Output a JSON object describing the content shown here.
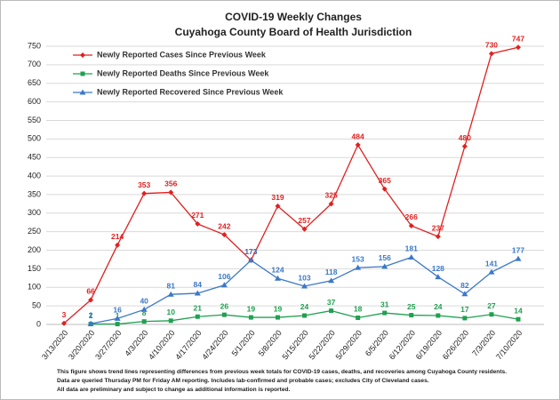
{
  "chart_data": {
    "type": "line",
    "title": "COVID-19 Weekly Changes",
    "subtitle": "Cuyahoga County Board of Health Jurisdiction",
    "categories": [
      "3/13/2020",
      "3/20/2020",
      "3/27/2020",
      "4/3/2020",
      "4/10/2020",
      "4/17/2020",
      "4/24/2020",
      "5/1/2020",
      "5/8/2020",
      "5/15/2020",
      "5/22/2020",
      "5/29/2020",
      "6/5/2020",
      "6/12/2020",
      "6/19/2020",
      "6/26/2020",
      "7/3/2020",
      "7/10/2020"
    ],
    "series": [
      {
        "name": "Newly Reported Cases Since Previous Week",
        "color": "#e02020",
        "marker": "diamond",
        "values": [
          3,
          66,
          214,
          353,
          356,
          271,
          242,
          173,
          319,
          257,
          325,
          484,
          365,
          266,
          237,
          480,
          730,
          747
        ]
      },
      {
        "name": "Newly Reported Deaths Since Previous Week",
        "color": "#20a050",
        "marker": "square",
        "values": [
          null,
          1,
          1,
          8,
          10,
          21,
          26,
          19,
          19,
          24,
          37,
          18,
          31,
          25,
          24,
          17,
          27,
          14
        ]
      },
      {
        "name": "Newly Reported Recovered Since Previous Week",
        "color": "#3a78c8",
        "marker": "triangle",
        "values": [
          null,
          2,
          16,
          40,
          81,
          84,
          106,
          173,
          124,
          103,
          118,
          153,
          156,
          181,
          128,
          82,
          141,
          177
        ]
      }
    ],
    "ylim": [
      0,
      750
    ],
    "yticks": [
      0,
      50,
      100,
      150,
      200,
      250,
      300,
      350,
      400,
      450,
      500,
      550,
      600,
      650,
      700,
      750
    ],
    "grid": true,
    "legend": "upper-left",
    "notes": [
      "This figure shows trend lines representing differences from previous week totals for COVID-19 cases, deaths, and recoveries among Cuyahoga County residents.",
      "Data are queried Thursday PM for Friday AM reporting. Includes lab-confirmed and probable cases; excludes City of Cleveland cases.",
      "All data are preliminary and subject to change as additional information is reported."
    ]
  }
}
